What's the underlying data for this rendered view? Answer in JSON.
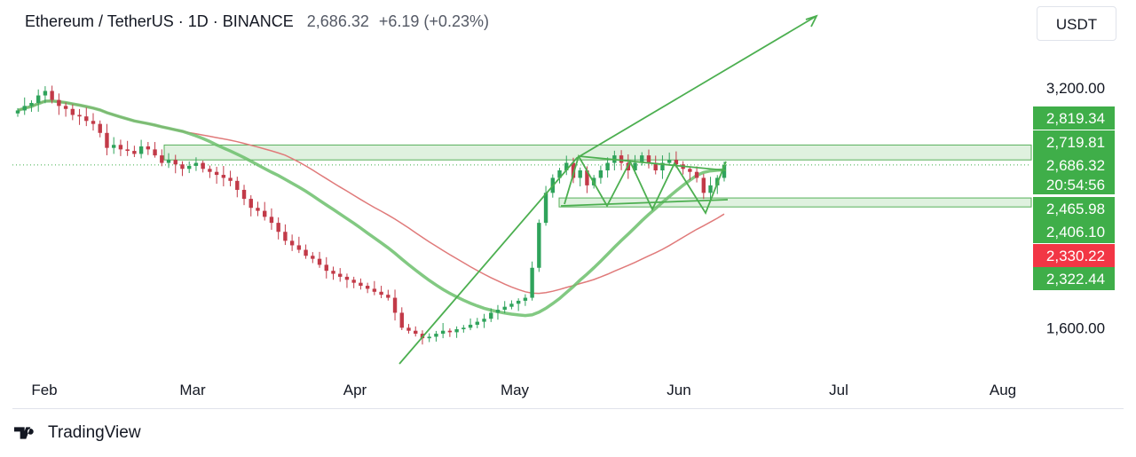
{
  "header": {
    "symbol_line": "Ethereum / TetherUS · 1D · BINANCE",
    "price": "2,686.32",
    "change": "+6.19 (+0.23%)"
  },
  "currency_button": {
    "label": "USDT"
  },
  "footer": {
    "brand": "TradingView"
  },
  "colors": {
    "up": "#2fa35b",
    "down": "#c23a48",
    "ma_green": "#6cbf6c",
    "ma_red": "#e07a7a",
    "zone_fill": "#dff1df",
    "zone_stroke": "#57b05a",
    "label_green": "#3fae49",
    "label_red": "#f23645",
    "pattern_line": "#4caf50"
  },
  "chart_data": {
    "type": "candlestick",
    "x_ticks": [
      "Feb",
      "Mar",
      "Apr",
      "May",
      "Jun",
      "Jul",
      "Aug"
    ],
    "y_ticks": [
      "3,200.00",
      "1,600.00"
    ],
    "y_range": [
      1300,
      3550
    ],
    "price_labels": [
      {
        "text": "2,819.34",
        "value": 2819.34,
        "color": "green"
      },
      {
        "text": "2,719.81",
        "value": 2719.81,
        "color": "green"
      },
      {
        "text": "2,686.32",
        "value": 2686.32,
        "color": "green"
      },
      {
        "text": "20:54:56",
        "value": null,
        "color": "green"
      },
      {
        "text": "2,465.98",
        "value": 2465.98,
        "color": "green"
      },
      {
        "text": "2,406.10",
        "value": 2406.1,
        "color": "green"
      },
      {
        "text": "2,330.22",
        "value": 2330.22,
        "color": "red"
      },
      {
        "text": "2,322.44",
        "value": 2322.44,
        "color": "green"
      }
    ],
    "zones": [
      {
        "low": 2719.81,
        "high": 2819.34
      },
      {
        "low": 2406.1,
        "high": 2465.98
      }
    ],
    "closes": [
      3050,
      3080,
      3100,
      3150,
      3180,
      3120,
      3080,
      3060,
      3020,
      3010,
      2980,
      2960,
      2900,
      2800,
      2820,
      2790,
      2780,
      2760,
      2810,
      2790,
      2750,
      2700,
      2720,
      2690,
      2660,
      2680,
      2700,
      2660,
      2640,
      2620,
      2600,
      2580,
      2520,
      2460,
      2400,
      2380,
      2340,
      2300,
      2240,
      2180,
      2150,
      2120,
      2080,
      2060,
      2020,
      1980,
      1960,
      1940,
      1920,
      1900,
      1880,
      1860,
      1840,
      1820,
      1800,
      1700,
      1600,
      1580,
      1560,
      1530,
      1540,
      1560,
      1580,
      1570,
      1590,
      1600,
      1620,
      1640,
      1660,
      1700,
      1720,
      1740,
      1760,
      1780,
      1800,
      2000,
      2300,
      2500,
      2600,
      2650,
      2700,
      2600,
      2650,
      2550,
      2600,
      2650,
      2700,
      2750,
      2700,
      2650,
      2700,
      2750,
      2700,
      2650,
      2700,
      2720,
      2690,
      2660,
      2640,
      2600,
      2500,
      2550,
      2600,
      2686
    ]
  }
}
